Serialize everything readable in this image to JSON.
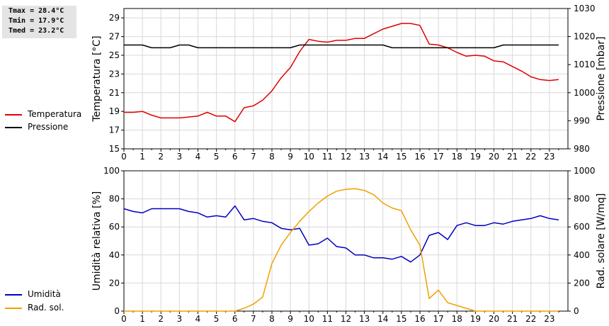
{
  "stats": {
    "tmax": "Tmax = 28.4°C",
    "tmin": "Tmin = 17.9°C",
    "tmed": "Tmed = 23.2°C"
  },
  "legend": {
    "top": [
      {
        "label": "Temperatura",
        "color": "#e00000"
      },
      {
        "label": "Pressione",
        "color": "#000000"
      }
    ],
    "bottom": [
      {
        "label": "Umidità",
        "color": "#0000c0"
      },
      {
        "label": "Rad. sol.",
        "color": "#f0a000"
      }
    ]
  },
  "chart_data": [
    {
      "type": "line",
      "ylabel": "Temperatura [°C]",
      "y2label": "Pressione [mbar]",
      "xlim": [
        0,
        24
      ],
      "ylim": [
        15,
        30
      ],
      "y2lim": [
        980,
        1030
      ],
      "x_ticks": [
        "0",
        "1",
        "2",
        "3",
        "4",
        "5",
        "6",
        "7",
        "8",
        "9",
        "10",
        "11",
        "12",
        "13",
        "14",
        "15",
        "16",
        "17",
        "18",
        "19",
        "20",
        "21",
        "22",
        "23"
      ],
      "y_ticks": [
        "15",
        "17",
        "19",
        "21",
        "23",
        "25",
        "27",
        "29"
      ],
      "y2_ticks": [
        "980",
        "990",
        "1000",
        "1010",
        "1020",
        "1030"
      ],
      "grid": true,
      "series": [
        {
          "name": "Temperatura",
          "axis": "left",
          "color": "#e00000",
          "x": [
            0,
            0.5,
            1,
            1.5,
            2,
            2.5,
            3,
            3.5,
            4,
            4.5,
            5,
            5.5,
            6,
            6.5,
            7,
            7.5,
            8,
            8.5,
            9,
            9.5,
            10,
            10.5,
            11,
            11.5,
            12,
            12.5,
            13,
            13.5,
            14,
            14.5,
            15,
            15.5,
            16,
            16.5,
            17,
            17.5,
            18,
            18.5,
            19,
            19.5,
            20,
            20.5,
            21,
            21.5,
            22,
            22.5,
            23,
            23.5
          ],
          "y": [
            18.9,
            18.9,
            19.0,
            18.6,
            18.3,
            18.3,
            18.3,
            18.4,
            18.5,
            18.9,
            18.5,
            18.5,
            17.9,
            19.4,
            19.6,
            20.2,
            21.2,
            22.6,
            23.7,
            25.4,
            26.7,
            26.5,
            26.4,
            26.6,
            26.6,
            26.8,
            26.8,
            27.3,
            27.8,
            28.1,
            28.4,
            28.4,
            28.2,
            26.2,
            26.1,
            25.8,
            25.3,
            24.9,
            25.0,
            24.9,
            24.4,
            24.3,
            23.8,
            23.3,
            22.7,
            22.4,
            22.3,
            22.4
          ]
        },
        {
          "name": "Pressione",
          "axis": "right",
          "color": "#000000",
          "x": [
            0,
            1,
            1.5,
            2.5,
            3,
            3.5,
            4,
            4.5,
            9,
            9.5,
            14,
            14.5,
            20,
            20.5,
            23.5
          ],
          "y": [
            1017,
            1017,
            1016,
            1016,
            1017,
            1017,
            1016,
            1016,
            1016,
            1017,
            1017,
            1016,
            1016,
            1017,
            1017
          ]
        }
      ]
    },
    {
      "type": "line",
      "ylabel": "Umidità relativa [%]",
      "y2label": "Rad. solare [W/mq]",
      "xlim": [
        0,
        24
      ],
      "ylim": [
        0,
        100
      ],
      "y2lim": [
        0,
        1000
      ],
      "x_ticks": [
        "0",
        "1",
        "2",
        "3",
        "4",
        "5",
        "6",
        "7",
        "8",
        "9",
        "10",
        "11",
        "12",
        "13",
        "14",
        "15",
        "16",
        "17",
        "18",
        "19",
        "20",
        "21",
        "22",
        "23"
      ],
      "y_ticks": [
        "0",
        "20",
        "40",
        "60",
        "80",
        "100"
      ],
      "y2_ticks": [
        "0",
        "200",
        "400",
        "600",
        "800",
        "1000"
      ],
      "grid": true,
      "series": [
        {
          "name": "Umidità",
          "axis": "left",
          "color": "#0000c0",
          "x": [
            0,
            0.5,
            1,
            1.5,
            2,
            2.5,
            3,
            3.5,
            4,
            4.5,
            5,
            5.5,
            6,
            6.5,
            7,
            7.5,
            8,
            8.5,
            9,
            9.5,
            10,
            10.5,
            11,
            11.5,
            12,
            12.5,
            13,
            13.5,
            14,
            14.5,
            15,
            15.5,
            16,
            16.5,
            17,
            17.5,
            18,
            18.5,
            19,
            19.5,
            20,
            20.5,
            21,
            21.5,
            22,
            22.5,
            23,
            23.5
          ],
          "y": [
            73,
            71,
            70,
            73,
            73,
            73,
            73,
            71,
            70,
            67,
            68,
            67,
            75,
            65,
            66,
            64,
            63,
            59,
            58,
            59,
            47,
            48,
            52,
            46,
            45,
            40,
            40,
            38,
            38,
            37,
            39,
            35,
            40,
            54,
            56,
            51,
            61,
            63,
            61,
            61,
            63,
            62,
            64,
            65,
            66,
            68,
            66,
            65
          ]
        },
        {
          "name": "Rad. sol.",
          "axis": "right",
          "color": "#f0a000",
          "x": [
            0,
            6,
            6.5,
            7,
            7.5,
            8,
            8.5,
            9,
            9.5,
            10,
            10.5,
            11,
            11.5,
            12,
            12.5,
            13,
            13.5,
            14,
            14.5,
            15,
            15.5,
            16,
            16.5,
            17,
            17.5,
            18,
            18.5,
            19,
            19.5,
            20,
            23.5
          ],
          "y": [
            0,
            0,
            20,
            50,
            100,
            340,
            470,
            560,
            640,
            710,
            770,
            820,
            855,
            868,
            872,
            860,
            830,
            770,
            735,
            715,
            580,
            470,
            90,
            150,
            60,
            40,
            20,
            0,
            0,
            0,
            0
          ]
        }
      ]
    }
  ]
}
